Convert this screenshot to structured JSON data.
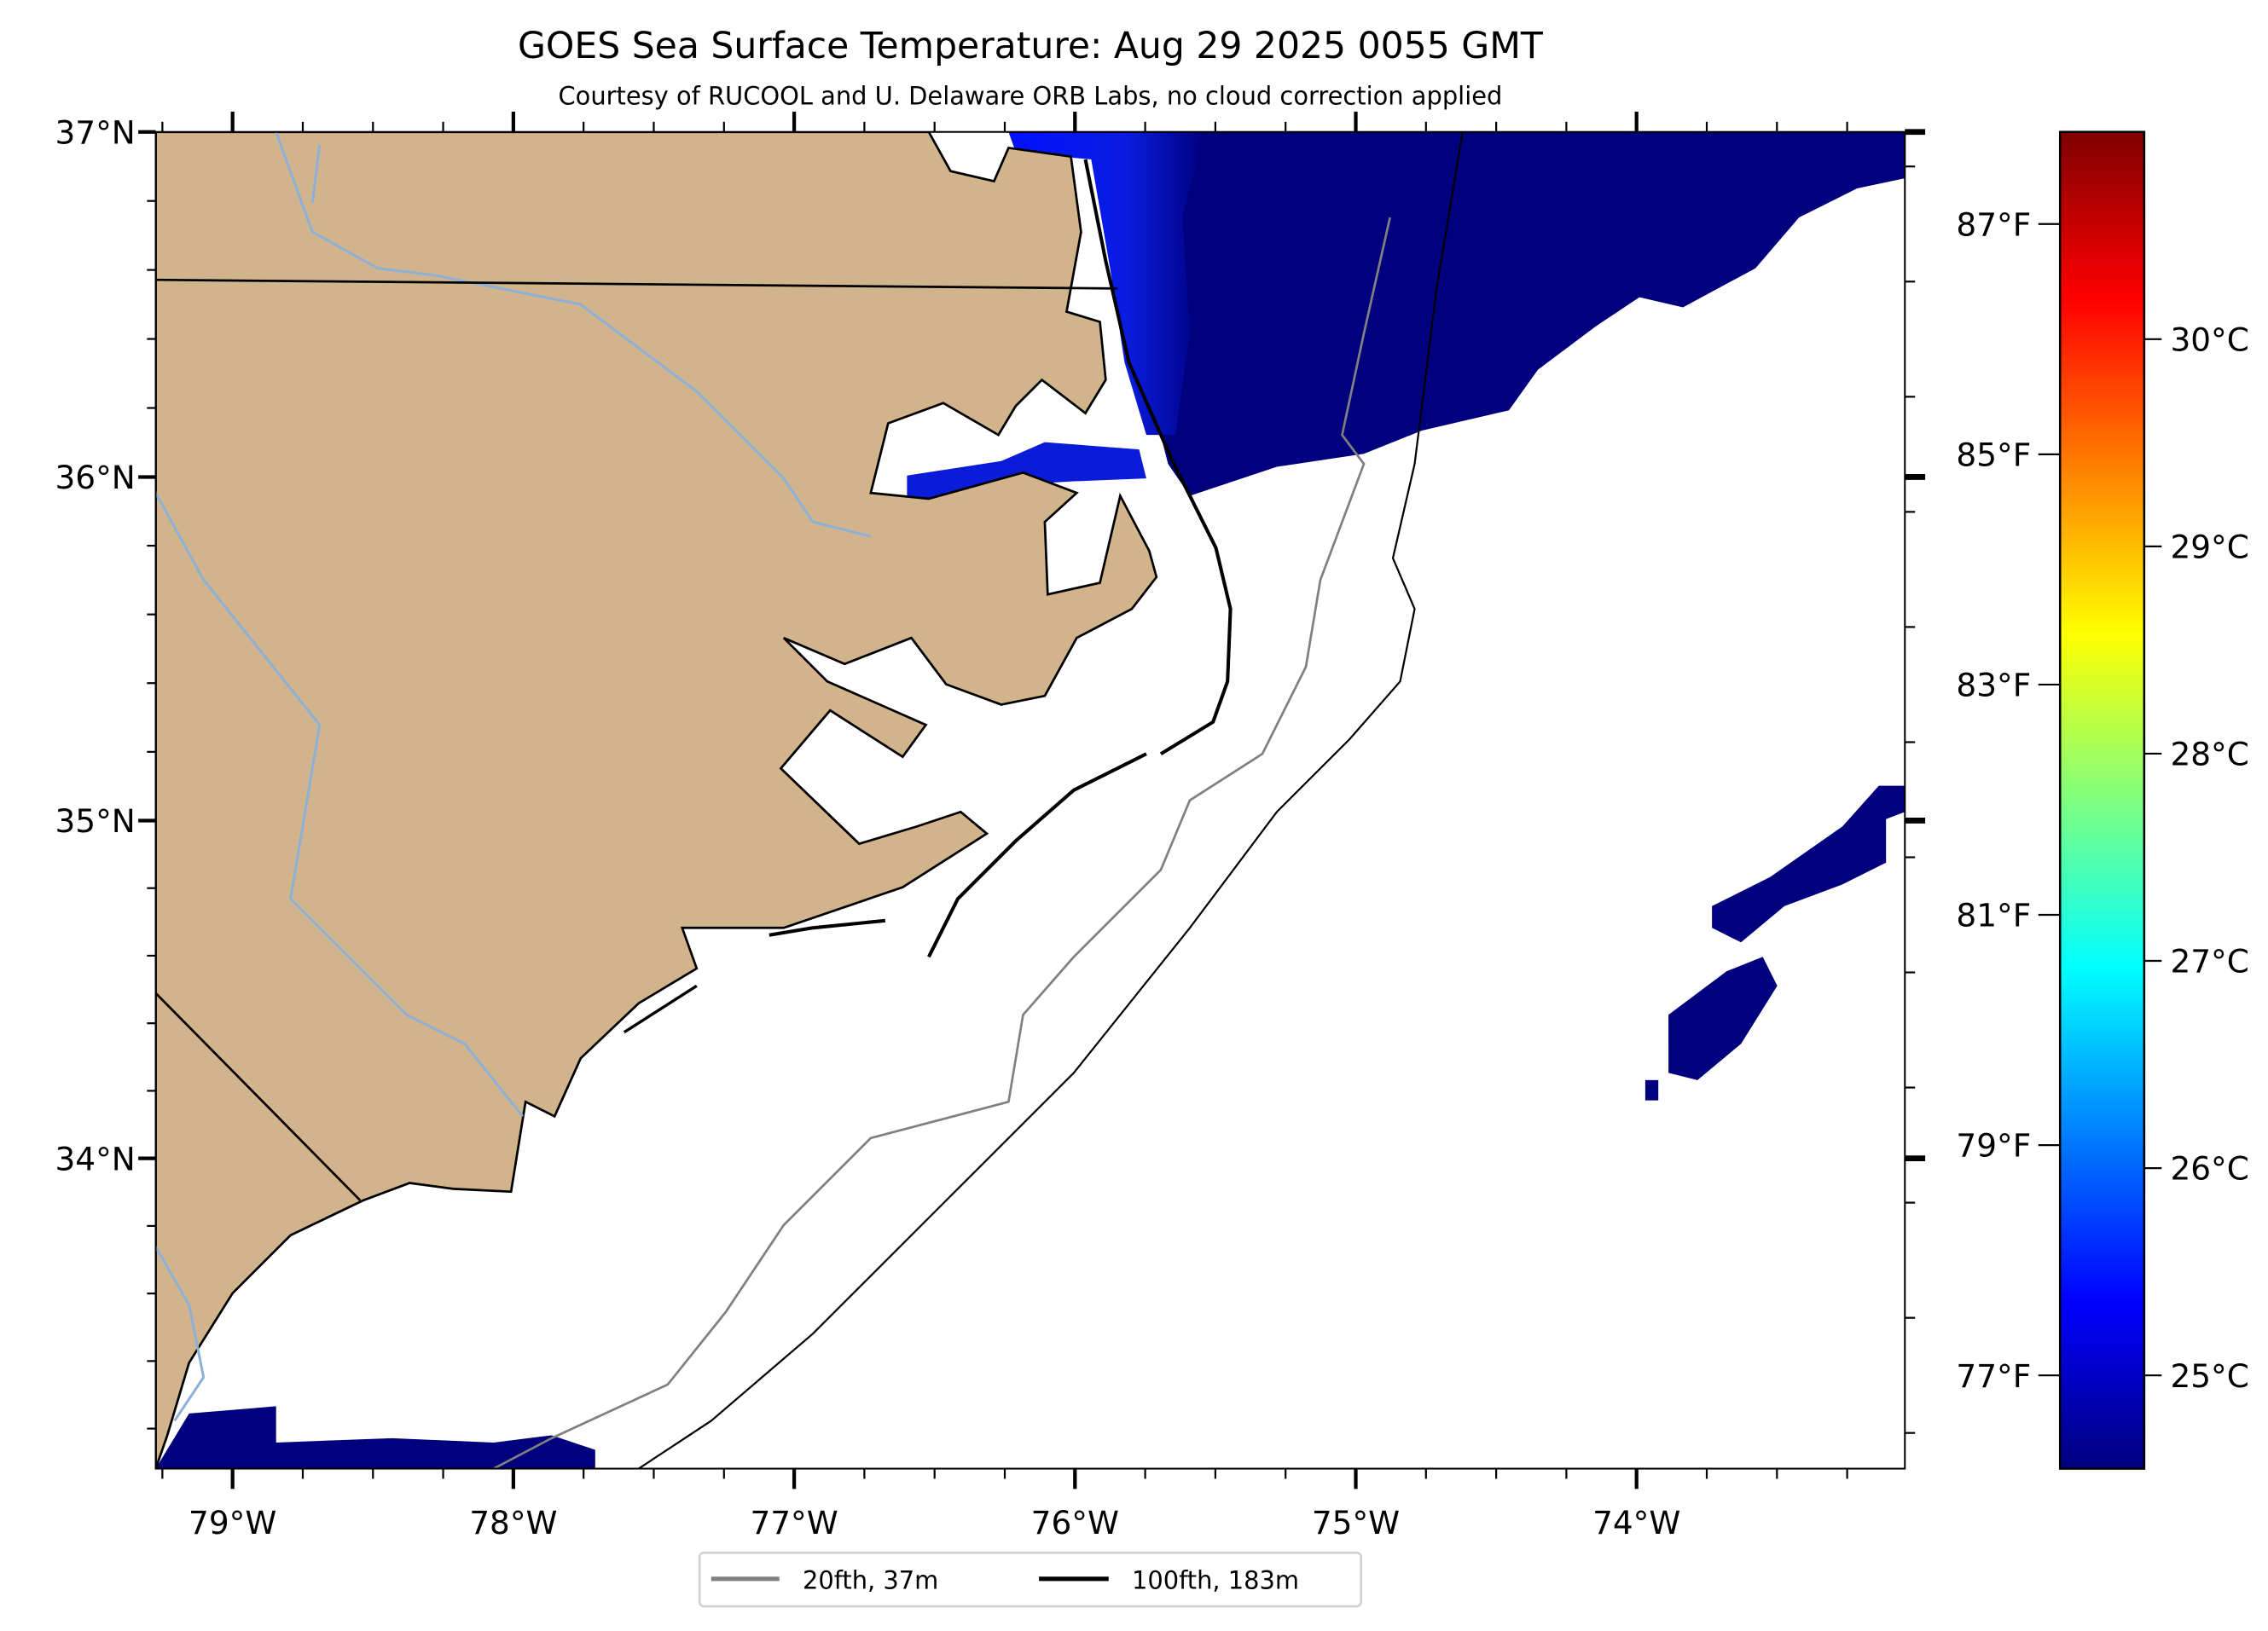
{
  "title": "GOES Sea Surface Temperature: Aug 29 2025 0055 GMT",
  "subtitle": "Courtesy of RUCOOL and U. Delaware ORB Labs, no cloud correction applied",
  "map": {
    "lon_range": [
      -79.27,
      -73.04
    ],
    "lat_range": [
      33.08,
      37.0
    ],
    "lon_ticks": [
      -79,
      -78,
      -77,
      -76,
      -75,
      -74
    ],
    "lon_labels": [
      "79°W",
      "78°W",
      "77°W",
      "76°W",
      "75°W",
      "74°W"
    ],
    "lat_ticks": [
      37,
      36,
      35,
      34
    ],
    "lat_labels": [
      "37°N",
      "36°N",
      "35°N",
      "34°N"
    ],
    "land_color": "#d2b48c",
    "river_color": "#8fb0d6",
    "ocean_color": "#ffffff"
  },
  "colorbar": {
    "range_c": [
      24.55,
      31.0
    ],
    "c_ticks": [
      25,
      26,
      27,
      28,
      29,
      30
    ],
    "c_labels": [
      "25°C",
      "26°C",
      "27°C",
      "28°C",
      "29°C",
      "30°C"
    ],
    "f_ticks": [
      77,
      79,
      81,
      83,
      85,
      87
    ],
    "f_labels": [
      "77°F",
      "79°F",
      "81°F",
      "83°F",
      "85°F",
      "87°F"
    ],
    "colormap": "jet",
    "stops": [
      "#00007f",
      "#0000ff",
      "#007fff",
      "#00ffff",
      "#7fff7f",
      "#ffff00",
      "#ff7f00",
      "#ff0000",
      "#7f0000"
    ]
  },
  "legend": {
    "items": [
      {
        "label": "20fth, 37m",
        "color": "#808080"
      },
      {
        "label": "100fth, 183m",
        "color": "#000000"
      }
    ]
  }
}
